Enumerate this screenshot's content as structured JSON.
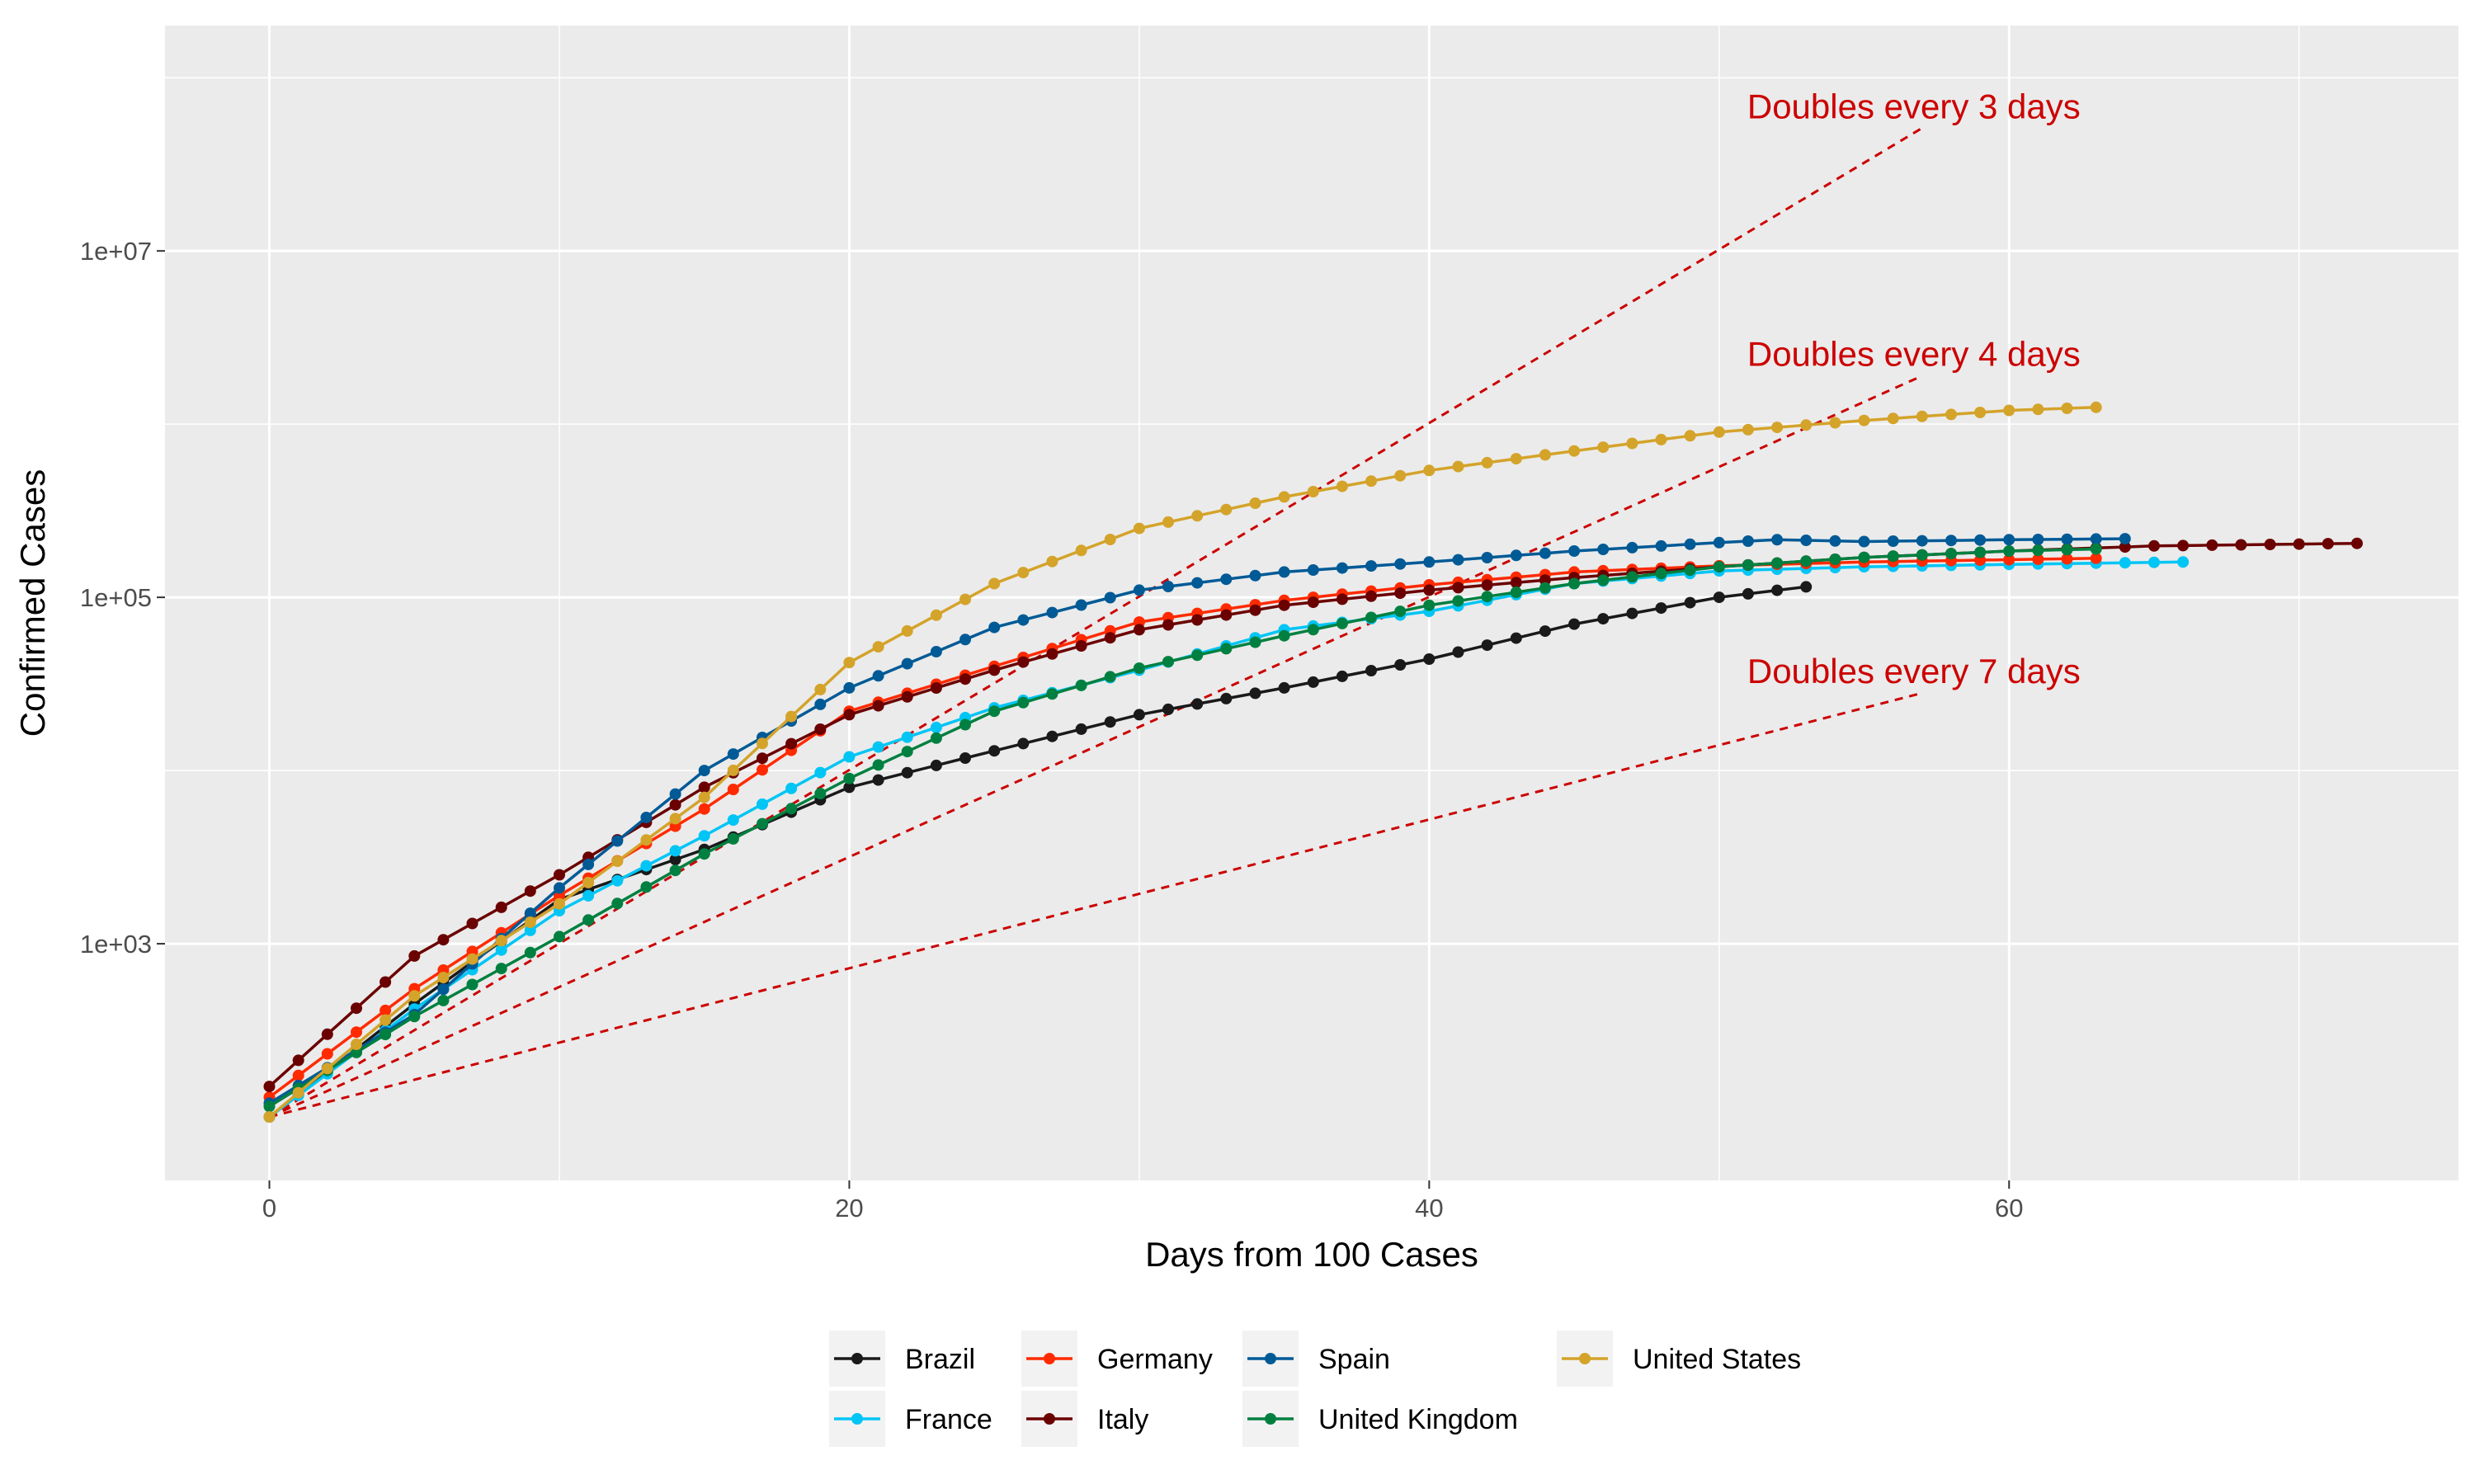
{
  "chart_data": {
    "type": "line",
    "xlabel": "Days from 100 Cases",
    "ylabel": "Confirmed Cases",
    "x_scale": "linear",
    "y_scale": "log10",
    "xlim": [
      -3.6,
      75.5
    ],
    "ylim": [
      43,
      200000000.0
    ],
    "x_ticks": [
      0,
      20,
      40,
      60
    ],
    "x_tick_labels": [
      "0",
      "20",
      "40",
      "60"
    ],
    "y_ticks": [
      1000,
      100000,
      10000000
    ],
    "y_tick_labels": [
      "1e+03",
      "1e+05",
      "1e+07"
    ],
    "grid": true,
    "legend_position": "bottom",
    "series": [
      {
        "name": "Brazil",
        "color": "#1a1a1a",
        "x": [
          0,
          5,
          10,
          15,
          20,
          25,
          30,
          35,
          40,
          45,
          50,
          53
        ],
        "y": [
          100,
          450,
          1800,
          3500,
          8000,
          13000,
          21000,
          30000,
          44000,
          70000,
          100000,
          115000
        ]
      },
      {
        "name": "France",
        "color": "#00c5f5",
        "x": [
          0,
          5,
          10,
          15,
          20,
          25,
          30,
          35,
          40,
          45,
          50,
          55,
          60,
          66
        ],
        "y": [
          100,
          420,
          1550,
          4200,
          12000,
          23000,
          38000,
          65000,
          83000,
          120000,
          142000,
          150000,
          155000,
          160000
        ]
      },
      {
        "name": "Germany",
        "color": "#ff2a00",
        "x": [
          0,
          5,
          10,
          15,
          20,
          25,
          30,
          35,
          40,
          45,
          50,
          55,
          60,
          63
        ],
        "y": [
          130,
          550,
          1900,
          6000,
          22000,
          40000,
          72000,
          96000,
          118000,
          140000,
          152000,
          160000,
          165000,
          168000
        ]
      },
      {
        "name": "Italy",
        "color": "#6b0000",
        "x": [
          0,
          5,
          10,
          15,
          20,
          25,
          30,
          35,
          40,
          45,
          50,
          55,
          60,
          65,
          72
        ],
        "y": [
          150,
          850,
          2500,
          8000,
          21000,
          38000,
          65000,
          90000,
          110000,
          130000,
          150000,
          170000,
          185000,
          198000,
          205000
        ]
      },
      {
        "name": "Spain",
        "color": "#005a96",
        "x": [
          0,
          5,
          10,
          15,
          20,
          25,
          30,
          35,
          40,
          45,
          50,
          52,
          55,
          60,
          64
        ],
        "y": [
          120,
          390,
          2100,
          10000,
          30000,
          67000,
          110000,
          140000,
          160000,
          185000,
          207000,
          215000,
          210000,
          215000,
          218000
        ]
      },
      {
        "name": "United Kingdom",
        "color": "#008040",
        "x": [
          0,
          5,
          10,
          15,
          20,
          25,
          30,
          35,
          40,
          45,
          50,
          55,
          60,
          63
        ],
        "y": [
          115,
          380,
          1100,
          3300,
          9000,
          22000,
          39000,
          60000,
          90000,
          120000,
          150000,
          170000,
          185000,
          190000
        ]
      },
      {
        "name": "United States",
        "color": "#d4a32a",
        "x": [
          0,
          5,
          10,
          15,
          20,
          25,
          30,
          35,
          40,
          45,
          50,
          55,
          60,
          63
        ],
        "y": [
          100,
          500,
          1700,
          7000,
          42000,
          120000,
          250000,
          380000,
          540000,
          700000,
          900000,
          1050000,
          1200000,
          1250000
        ]
      }
    ],
    "reference_lines": [
      {
        "label": "Doubles every 3 days",
        "color": "#cc0000",
        "x": [
          0,
          57
        ],
        "y": [
          100,
          51200000
        ]
      },
      {
        "label": "Doubles every 4 days",
        "color": "#cc0000",
        "x": [
          0,
          57
        ],
        "y": [
          100,
          1900000
        ]
      },
      {
        "label": "Doubles every 7 days",
        "color": "#cc0000",
        "x": [
          0,
          57
        ],
        "y": [
          100,
          28000
        ]
      }
    ]
  }
}
